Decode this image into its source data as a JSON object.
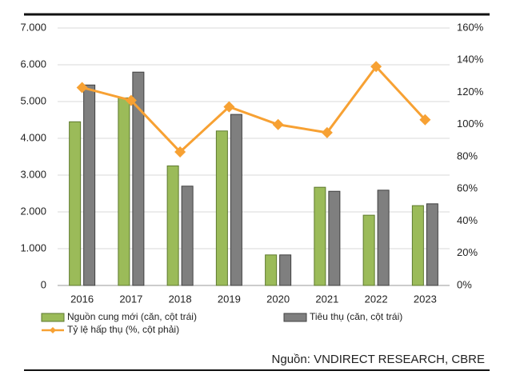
{
  "chart_data": {
    "type": "bar-line",
    "categories": [
      "2016",
      "2017",
      "2018",
      "2019",
      "2020",
      "2021",
      "2022",
      "2023"
    ],
    "series": [
      {
        "name": "Nguồn cung mới (căn, cột trái)",
        "type": "bar",
        "color": "#9bbb59",
        "values": [
          4450,
          5100,
          3250,
          4200,
          830,
          2670,
          1910,
          2170
        ]
      },
      {
        "name": "Tiêu thụ (căn, cột trái)",
        "type": "bar",
        "color": "#7f7f7f",
        "values": [
          5450,
          5800,
          2700,
          4650,
          830,
          2560,
          2590,
          2220
        ]
      },
      {
        "name": "Tỷ lệ hấp thụ (%, cột phải)",
        "type": "line",
        "axis": "y2",
        "color": "#f7a133",
        "values": [
          123,
          115,
          83,
          111,
          100,
          95,
          136,
          103
        ]
      }
    ],
    "ylim": [
      0,
      7000
    ],
    "yticks": [
      0,
      {
        "value": 1000,
        "label": "1.000"
      },
      {
        "value": 2000,
        "label": "2.000"
      },
      {
        "value": 3000,
        "label": "3.000"
      },
      {
        "value": 4000,
        "label": "4.000"
      },
      {
        "value": 5000,
        "label": "5.000"
      },
      {
        "value": 6000,
        "label": "6.000"
      },
      {
        "value": 7000,
        "label": "7.000"
      }
    ],
    "y2lim": [
      0,
      160
    ],
    "y2ticks": [
      {
        "value": 0,
        "label": "0%"
      },
      {
        "value": 20,
        "label": "20%"
      },
      {
        "value": 40,
        "label": "40%"
      },
      {
        "value": 60,
        "label": "60%"
      },
      {
        "value": 80,
        "label": "80%"
      },
      {
        "value": 100,
        "label": "100%"
      },
      {
        "value": 120,
        "label": "120%"
      },
      {
        "value": 140,
        "label": "140%"
      },
      {
        "value": 160,
        "label": "160%"
      }
    ],
    "grid": true,
    "legend": "bottom",
    "source": "Nguồn: VNDIRECT RESEARCH, CBRE"
  }
}
